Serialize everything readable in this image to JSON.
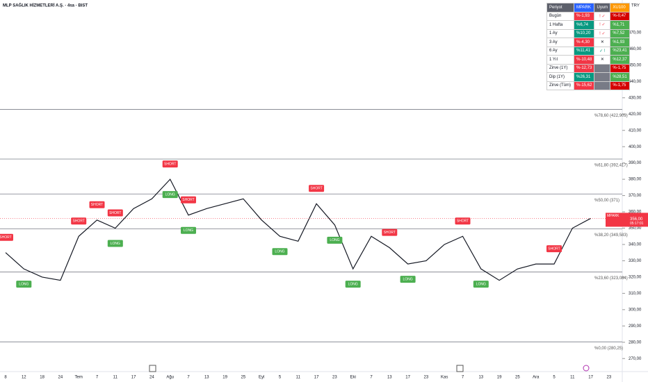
{
  "chart_data": {
    "type": "line",
    "title": "MLP SAĞLIK HİZMETLERİ A.Ş. · 4sa · BIST",
    "currency": "TRY",
    "categories": [
      "8",
      "12",
      "18",
      "24",
      "Tem",
      "7",
      "11",
      "17",
      "24",
      "Ağu",
      "7",
      "13",
      "19",
      "25",
      "Eyl",
      "5",
      "11",
      "17",
      "23",
      "Eki",
      "7",
      "13",
      "17",
      "23",
      "Kas",
      "7",
      "13",
      "19",
      "25",
      "Ara",
      "5",
      "11",
      "17",
      "23"
    ],
    "values": [
      335,
      325,
      320,
      318,
      345,
      355,
      350,
      362,
      368,
      380,
      358,
      362,
      365,
      368,
      355,
      345,
      342,
      365,
      352,
      325,
      345,
      338,
      328,
      330,
      340,
      345,
      325,
      318,
      325,
      328,
      328,
      350,
      356,
      null
    ],
    "color": "#131722",
    "signals": [
      [
        "SHORT"
      ],
      [
        "LONG"
      ],
      [],
      [],
      [
        "SHORT"
      ],
      [
        "SHORT"
      ],
      [
        "SHORT",
        "LONG"
      ],
      [],
      [],
      [
        "SHORT",
        "LONG"
      ],
      [
        "SHORT",
        "LONG"
      ],
      [],
      [],
      [],
      [],
      [
        "LONG"
      ],
      [],
      [
        "SHORT"
      ],
      [
        "LONG"
      ],
      [
        "LONG"
      ],
      [],
      [
        "SHORT"
      ],
      [
        "LONG"
      ],
      [],
      [],
      [
        "SHORT"
      ],
      [
        "LONG"
      ],
      [],
      [],
      [],
      [
        "SHORT"
      ],
      [],
      [],
      []
    ],
    "ylim": [
      262,
      490
    ],
    "yticks": [
      {
        "value": 270,
        "label": "270,00"
      },
      {
        "value": 280,
        "label": "280,00"
      },
      {
        "value": 290,
        "label": "290,00"
      },
      {
        "value": 300,
        "label": "300,00"
      },
      {
        "value": 310,
        "label": "310,00"
      },
      {
        "value": 320,
        "label": "320,00"
      },
      {
        "value": 330,
        "label": "330,00"
      },
      {
        "value": 340,
        "label": "340,00"
      },
      {
        "value": 350,
        "label": "350,00"
      },
      {
        "value": 360,
        "label": "360,00"
      },
      {
        "value": 370,
        "label": "370,00"
      },
      {
        "value": 380,
        "label": "380,00"
      },
      {
        "value": 390,
        "label": "390,00"
      },
      {
        "value": 400,
        "label": "400,00"
      },
      {
        "value": 410,
        "label": "410,00"
      },
      {
        "value": 420,
        "label": "420,00"
      },
      {
        "value": 430,
        "label": "430,00"
      },
      {
        "value": 440,
        "label": "440,00"
      },
      {
        "value": 450,
        "label": "450,00"
      },
      {
        "value": 460,
        "label": "460,00"
      },
      {
        "value": 470,
        "label": "470,00"
      }
    ],
    "levels": [
      {
        "value": 422.909,
        "label": "%78,60 (422,909)"
      },
      {
        "value": 392.417,
        "label": "%61,80 (392,417)"
      },
      {
        "value": 371,
        "label": "%50,00 (371)"
      },
      {
        "value": 349.583,
        "label": "%38,20 (349,583)"
      },
      {
        "value": 323.084,
        "label": "%23,60 (323,084)"
      },
      {
        "value": 280.25,
        "label": "%0,00 (280,25)"
      }
    ],
    "last_price": {
      "symbol": "MPARK",
      "value": 356,
      "label": "356,00",
      "time": "05:17:01"
    },
    "table": {
      "header": [
        "Periyot",
        "MPARK",
        "Uyum",
        "XU100"
      ],
      "rows": [
        [
          "Bugün",
          "%-1,93",
          "! ✓",
          "%-0,47"
        ],
        [
          "1 Hafta",
          "%6,74",
          "! ✓",
          "%1,71"
        ],
        [
          "1 Ay",
          "%10,20",
          "! ✓",
          "%7,52"
        ],
        [
          "3 Ay",
          "%-4,30",
          "✕",
          "%1,93"
        ],
        [
          "6 Ay",
          "%11,41",
          "✓ !",
          "%23,41"
        ],
        [
          "1 Yıl",
          "%-10,48",
          "✕",
          "%12,37"
        ],
        [
          "Zirve (1Y)",
          "%-12,73",
          "",
          "%-1,75"
        ],
        [
          "Dip (1Y)",
          "%26,31",
          "",
          "%28,51"
        ],
        [
          "Zirve (Tüm)",
          "%-15,62",
          "",
          "%-1,75"
        ]
      ]
    }
  }
}
